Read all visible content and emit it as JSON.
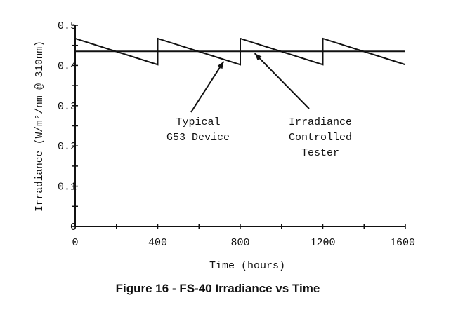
{
  "chart_data": {
    "type": "line",
    "caption": "Figure 16 - FS-40 Irradiance vs Time",
    "xlabel": "Time (hours)",
    "ylabel": "Irradiance (W/m²/nm @ 310nm)",
    "xlim": [
      0,
      1600
    ],
    "ylim": [
      0,
      0.5
    ],
    "x_ticks": [
      0,
      400,
      800,
      1200,
      1600
    ],
    "x_tick_labels": [
      "0",
      "400",
      "800",
      "1200",
      "1600"
    ],
    "x_minor_step": 200,
    "y_ticks": [
      0,
      0.1,
      0.2,
      0.3,
      0.4,
      0.5
    ],
    "y_tick_labels": [
      "0",
      "0.1",
      "0.2",
      "0.3",
      "0.4",
      "0.5"
    ],
    "y_minor_step": 0.05,
    "grid": false,
    "series": [
      {
        "id": "typical",
        "x": [
          0,
          400,
          400,
          800,
          800,
          1200,
          1200,
          1600
        ],
        "y": [
          0.467,
          0.402,
          0.467,
          0.402,
          0.467,
          0.402,
          0.467,
          0.402
        ]
      },
      {
        "id": "controlled",
        "x": [
          0,
          1600
        ],
        "y": [
          0.435,
          0.435
        ]
      }
    ],
    "annotations": [
      {
        "lines": [
          "Typical",
          "G53 Device"
        ],
        "points_to": {
          "x": 720,
          "y": 0.41
        }
      },
      {
        "lines": [
          "Irradiance",
          "Controlled",
          "Tester"
        ],
        "points_to": {
          "x": 870,
          "y": 0.43
        }
      }
    ]
  }
}
